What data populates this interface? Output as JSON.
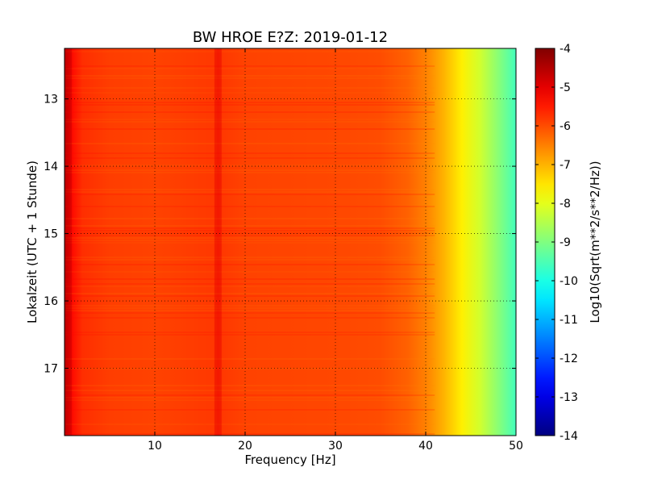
{
  "chart_data": {
    "type": "heatmap",
    "title": "BW HROE E?Z: 2019-01-12",
    "xlabel": "Frequency [Hz]",
    "ylabel": "Lokalzeit (UTC + 1 Stunde)",
    "xlim": [
      0,
      50
    ],
    "ylim": [
      12.25,
      18.0
    ],
    "y_inverted": true,
    "x_ticks": [
      "10",
      "20",
      "30",
      "40",
      "50"
    ],
    "y_ticks": [
      "13",
      "14",
      "15",
      "16",
      "17"
    ],
    "grid": true,
    "colormap": "jet",
    "colorbar": {
      "label": "Log10(Sqrt(m**2/s**2/Hz))",
      "range": [
        -14,
        -4
      ],
      "ticks": [
        "-4",
        "-5",
        "-6",
        "-7",
        "-8",
        "-9",
        "-10",
        "-11",
        "-12",
        "-13",
        "-14"
      ]
    },
    "spectrum_profile": {
      "frequency_hz": [
        0,
        0.5,
        1,
        2,
        5,
        10,
        16.5,
        17,
        17.5,
        20,
        30,
        35,
        38,
        40,
        42,
        44,
        46,
        48,
        50
      ],
      "log10_amplitude": [
        -4.5,
        -5.0,
        -5.4,
        -5.7,
        -5.85,
        -5.9,
        -5.8,
        -5.6,
        -5.8,
        -5.9,
        -5.95,
        -6.0,
        -6.2,
        -6.5,
        -7.0,
        -7.6,
        -8.2,
        -8.9,
        -9.6
      ]
    }
  }
}
